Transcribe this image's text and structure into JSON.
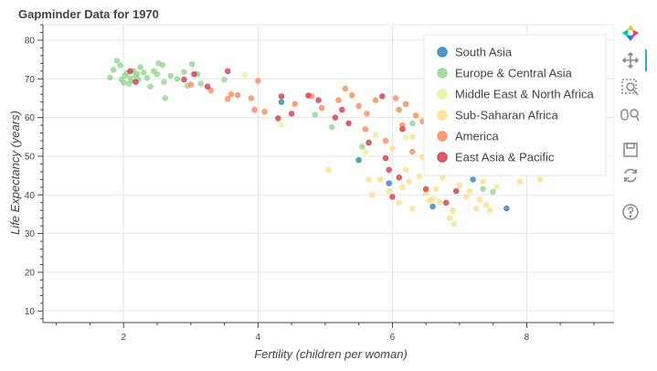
{
  "toolbar": {
    "tools": [
      {
        "name": "bokeh-logo-icon",
        "active": false
      },
      {
        "name": "pan-tool-icon",
        "active": true
      },
      {
        "name": "box-zoom-tool-icon",
        "active": false
      },
      {
        "name": "wheel-zoom-tool-icon",
        "active": false
      },
      {
        "name": "save-tool-icon",
        "active": false
      },
      {
        "name": "reset-tool-icon",
        "active": false
      },
      {
        "name": "help-tool-icon",
        "active": false
      }
    ]
  },
  "chart_data": {
    "type": "scatter",
    "title": "Gapminder Data for 1970",
    "xlabel": "Fertility (children per woman)",
    "ylabel": "Life Expectancy (years)",
    "xlim": [
      0.8,
      9.3
    ],
    "ylim": [
      7,
      84
    ],
    "x_ticks": [
      2,
      4,
      6,
      8
    ],
    "y_ticks": [
      10,
      20,
      30,
      40,
      50,
      60,
      70,
      80
    ],
    "grid": true,
    "legend_position": "top-right",
    "series": [
      {
        "name": "South Asia",
        "color": "#3288bd",
        "points": [
          [
            4.35,
            64.0
          ],
          [
            5.5,
            49.0
          ],
          [
            5.95,
            43.0
          ],
          [
            6.6,
            37.0
          ],
          [
            7.2,
            44.0
          ],
          [
            7.7,
            36.5
          ]
        ]
      },
      {
        "name": "Europe & Central Asia",
        "color": "#99d594",
        "points": [
          [
            1.8,
            70.3
          ],
          [
            1.85,
            72.3
          ],
          [
            1.9,
            74.7
          ],
          [
            1.95,
            73.5
          ],
          [
            1.97,
            69.8
          ],
          [
            2.0,
            69.0
          ],
          [
            2.02,
            70.8
          ],
          [
            2.05,
            71.5
          ],
          [
            2.08,
            68.7
          ],
          [
            2.1,
            70.2
          ],
          [
            2.12,
            69.5
          ],
          [
            2.15,
            72.0
          ],
          [
            2.18,
            70.8
          ],
          [
            2.2,
            71.3
          ],
          [
            2.22,
            69.8
          ],
          [
            2.25,
            73.0
          ],
          [
            2.3,
            71.6
          ],
          [
            2.35,
            70.2
          ],
          [
            2.4,
            68.0
          ],
          [
            2.45,
            72.0
          ],
          [
            2.5,
            71.2
          ],
          [
            2.52,
            74.0
          ],
          [
            2.58,
            73.6
          ],
          [
            2.6,
            69.2
          ],
          [
            2.62,
            65.0
          ],
          [
            2.7,
            70.8
          ],
          [
            2.8,
            70.0
          ],
          [
            2.9,
            71.8
          ],
          [
            2.95,
            68.2
          ],
          [
            3.02,
            73.8
          ],
          [
            3.1,
            71.2
          ],
          [
            3.15,
            68.8
          ],
          [
            3.5,
            69.8
          ],
          [
            4.85,
            60.7
          ],
          [
            5.1,
            57.5
          ],
          [
            5.55,
            52.5
          ],
          [
            6.3,
            58.5
          ],
          [
            7.35,
            41.5
          ],
          [
            7.5,
            40.8
          ]
        ]
      },
      {
        "name": "Middle East & North Africa",
        "color": "#e6f598",
        "points": [
          [
            3.8,
            71.0
          ],
          [
            4.35,
            58.0
          ],
          [
            5.6,
            51.2
          ],
          [
            5.75,
            55.5
          ],
          [
            6.2,
            54.8
          ],
          [
            6.6,
            58.5
          ],
          [
            6.8,
            53.5
          ],
          [
            7.1,
            56.8
          ],
          [
            7.3,
            49.0
          ],
          [
            7.4,
            55.5
          ],
          [
            7.55,
            42.0
          ]
        ]
      },
      {
        "name": "Sub-Saharan Africa",
        "color": "#fee08b",
        "points": [
          [
            5.05,
            46.5
          ],
          [
            5.65,
            44.0
          ],
          [
            5.7,
            40.0
          ],
          [
            5.82,
            44.0
          ],
          [
            5.95,
            41.0
          ],
          [
            6.0,
            52.0
          ],
          [
            6.1,
            38.0
          ],
          [
            6.15,
            42.0
          ],
          [
            6.2,
            46.5
          ],
          [
            6.25,
            43.5
          ],
          [
            6.3,
            36.5
          ],
          [
            6.4,
            44.8
          ],
          [
            6.45,
            49.8
          ],
          [
            6.5,
            40.5
          ],
          [
            6.55,
            38.5
          ],
          [
            6.6,
            39.0
          ],
          [
            6.65,
            41.5
          ],
          [
            6.7,
            38.2
          ],
          [
            6.75,
            44.5
          ],
          [
            6.8,
            46.5
          ],
          [
            6.85,
            34.0
          ],
          [
            6.9,
            36.0
          ],
          [
            6.92,
            32.5
          ],
          [
            7.0,
            42.5
          ],
          [
            7.05,
            48.5
          ],
          [
            7.1,
            39.5
          ],
          [
            7.15,
            41.0
          ],
          [
            7.2,
            47.5
          ],
          [
            7.25,
            36.5
          ],
          [
            7.3,
            38.8
          ],
          [
            7.35,
            43.5
          ],
          [
            7.4,
            37.5
          ],
          [
            7.45,
            36.0
          ],
          [
            7.55,
            47.0
          ],
          [
            7.6,
            45.5
          ],
          [
            7.65,
            49.2
          ],
          [
            7.7,
            50.5
          ],
          [
            7.9,
            43.5
          ],
          [
            8.2,
            44.0
          ],
          [
            7.0,
            50.5
          ],
          [
            6.3,
            55.0
          ]
        ]
      },
      {
        "name": "America",
        "color": "#fc8d59",
        "points": [
          [
            3.0,
            68.5
          ],
          [
            3.3,
            67.0
          ],
          [
            3.55,
            64.8
          ],
          [
            3.6,
            66.0
          ],
          [
            3.7,
            65.8
          ],
          [
            3.9,
            65.0
          ],
          [
            3.95,
            62.0
          ],
          [
            4.0,
            69.5
          ],
          [
            4.1,
            61.5
          ],
          [
            4.55,
            63.5
          ],
          [
            4.8,
            65.5
          ],
          [
            4.95,
            62.5
          ],
          [
            5.2,
            64.5
          ],
          [
            5.3,
            67.5
          ],
          [
            5.4,
            65.8
          ],
          [
            5.5,
            63.0
          ],
          [
            5.6,
            57.0
          ],
          [
            5.62,
            61.0
          ],
          [
            5.75,
            64.5
          ],
          [
            5.9,
            54.0
          ],
          [
            6.05,
            65.0
          ],
          [
            6.1,
            62.0
          ],
          [
            6.15,
            58.0
          ],
          [
            6.2,
            63.5
          ],
          [
            6.3,
            51.2
          ],
          [
            6.35,
            60.5
          ],
          [
            6.45,
            59.0
          ]
        ]
      },
      {
        "name": "East Asia & Pacific",
        "color": "#d53e4f",
        "points": [
          [
            2.1,
            72.0
          ],
          [
            2.18,
            69.2
          ],
          [
            2.9,
            69.8
          ],
          [
            3.05,
            71.2
          ],
          [
            3.25,
            68.0
          ],
          [
            3.55,
            72.0
          ],
          [
            4.3,
            59.8
          ],
          [
            4.35,
            65.5
          ],
          [
            4.5,
            61.0
          ],
          [
            4.75,
            65.7
          ],
          [
            4.9,
            64.5
          ],
          [
            5.15,
            60.0
          ],
          [
            5.25,
            62.0
          ],
          [
            5.35,
            58.5
          ],
          [
            5.65,
            53.5
          ],
          [
            5.85,
            65.5
          ],
          [
            5.9,
            49.5
          ],
          [
            5.95,
            46.5
          ],
          [
            6.0,
            39.5
          ],
          [
            6.1,
            44.5
          ],
          [
            6.15,
            57.0
          ],
          [
            6.5,
            41.5
          ],
          [
            6.8,
            38.0
          ],
          [
            6.95,
            41.0
          ]
        ]
      }
    ]
  }
}
